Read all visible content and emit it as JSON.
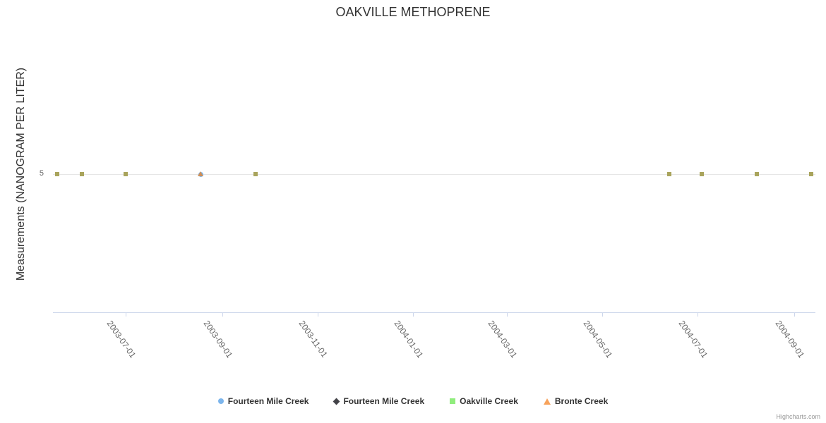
{
  "chart": {
    "credit": "Highcharts.com"
  },
  "chart_data": {
    "type": "scatter",
    "title": "OAKVILLE METHOPRENE",
    "xlabel": "",
    "ylabel": "Measurements (NANOGRAM PER LITER)",
    "x_axis": {
      "type": "datetime",
      "tick_labels": [
        "2003-07-01",
        "2003-09-01",
        "2003-11-01",
        "2004-01-01",
        "2004-03-01",
        "2004-05-01",
        "2004-07-01",
        "2004-09-01"
      ]
    },
    "y_axis": {
      "visible_ticks": [
        5
      ],
      "min": 0,
      "max_estimate": 10
    },
    "grid": "horizontal-faint",
    "legend_position": "bottom",
    "series": [
      {
        "name": "Fourteen Mile Creek",
        "marker": "circle",
        "color": "#7cb5ec",
        "points": [
          {
            "date": "2003-08-18",
            "value": 5
          }
        ]
      },
      {
        "name": "Fourteen Mile Creek",
        "marker": "diamond",
        "color": "#434348",
        "points": []
      },
      {
        "name": "Oakville Creek",
        "marker": "square",
        "color": "#90ed7d",
        "marker_color": "#a9a45c",
        "points": [
          {
            "date": "2003-05-18",
            "value": 5
          },
          {
            "date": "2003-06-03",
            "value": 5
          },
          {
            "date": "2003-07-01",
            "value": 5
          },
          {
            "date": "2003-09-22",
            "value": 5
          },
          {
            "date": "2004-06-13",
            "value": 5
          },
          {
            "date": "2004-07-04",
            "value": 5
          },
          {
            "date": "2004-08-08",
            "value": 5
          },
          {
            "date": "2004-09-12",
            "value": 5
          }
        ]
      },
      {
        "name": "Bronte Creek",
        "marker": "triangle",
        "color": "#f7a35c",
        "marker_color": "#cd8f58",
        "points": [
          {
            "date": "2003-08-18",
            "value": 5
          }
        ]
      }
    ]
  }
}
